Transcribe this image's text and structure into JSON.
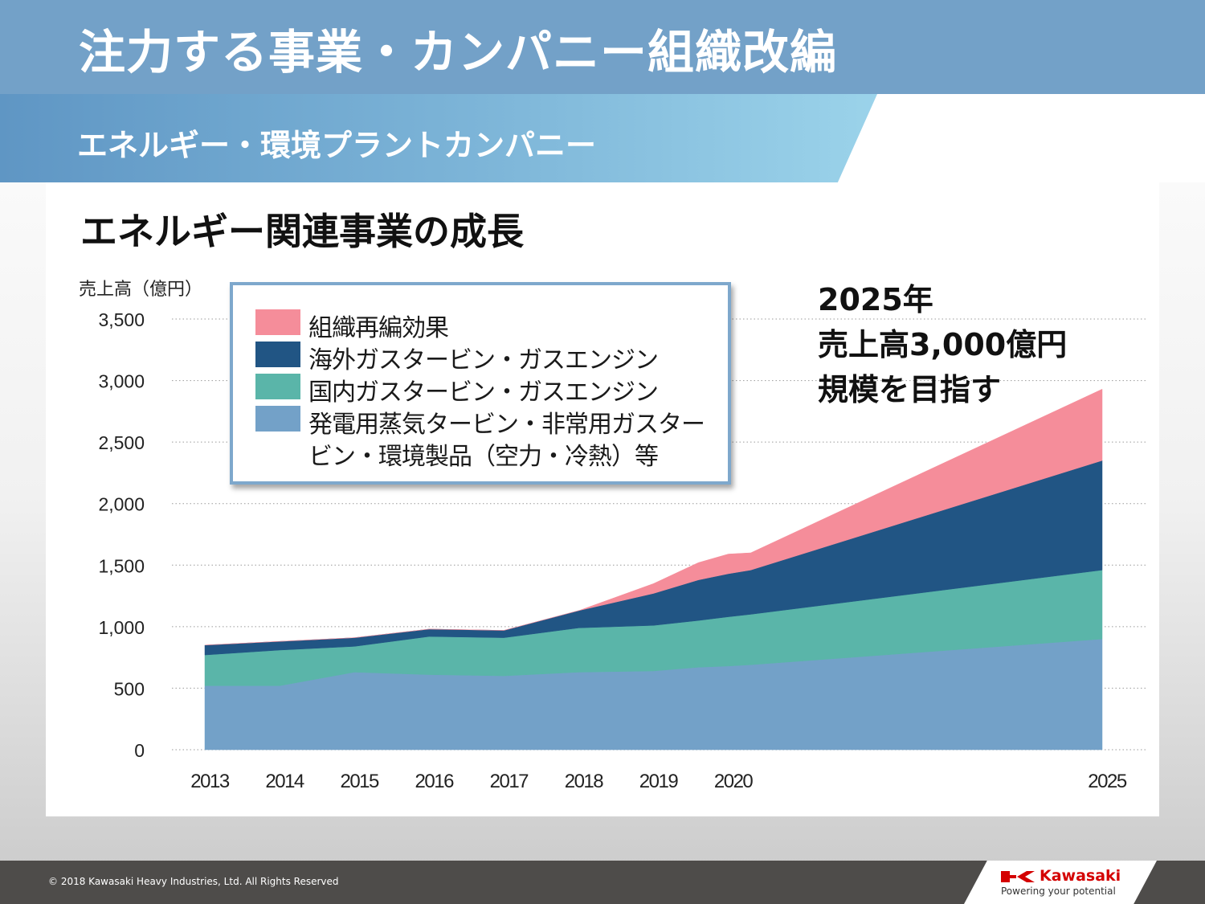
{
  "header": {
    "title": "注力する事業・カンパニー組織改編",
    "subtitle": "エネルギー・環境プラントカンパニー"
  },
  "chart_heading": "エネルギー関連事業の成長",
  "annotation": {
    "lines": [
      "2025年",
      "売上高3,000億円",
      "規模を目指す"
    ]
  },
  "legend": {
    "items": [
      {
        "label": "組織再編効果",
        "color": "#f58d9a"
      },
      {
        "label": "海外ガスタービン・ガスエンジン",
        "color": "#215584"
      },
      {
        "label": "国内ガスタービン・ガスエンジン",
        "color": "#5ab5a9"
      },
      {
        "label_line1": "発電用蒸気タービン・非常用ガスター",
        "label_line2": "ビン・環境製品（空力・冷熱）等",
        "color": "#73a1c8"
      }
    ]
  },
  "chart_data": {
    "type": "area",
    "stacked": true,
    "ylabel": "売上高（億円）",
    "ylim": [
      0,
      3500
    ],
    "yticks": [
      0,
      500,
      1000,
      1500,
      2000,
      2500,
      3000,
      3500
    ],
    "ytick_labels": [
      "0",
      "500",
      "1,000",
      "1,500",
      "2,000",
      "2,500",
      "3,000",
      "3,500"
    ],
    "x_positions": [
      2013,
      2014,
      2015,
      2016,
      2017,
      2018,
      2019,
      2019.6,
      2020,
      2020.3,
      2025
    ],
    "xtick_labels": [
      "2013",
      "2014",
      "2015",
      "2016",
      "2017",
      "2018",
      "2019",
      "2020",
      "2025"
    ],
    "xtick_values": [
      2013,
      2014,
      2015,
      2016,
      2017,
      2018,
      2019,
      2020,
      2025
    ],
    "grid": "dotted-horizontal",
    "series": [
      {
        "name": "発電用蒸気タービン・非常用ガスタービン・環境製品（空力・冷熱）等",
        "color": "#73a1c8",
        "values": [
          520,
          520,
          630,
          610,
          600,
          630,
          640,
          670,
          680,
          690,
          900
        ]
      },
      {
        "name": "国内ガスタービン・ガスエンジン",
        "color": "#5ab5a9",
        "values": [
          250,
          290,
          210,
          310,
          310,
          360,
          370,
          380,
          400,
          410,
          560
        ]
      },
      {
        "name": "海外ガスタービン・ガスエンジン",
        "color": "#215584",
        "values": [
          80,
          70,
          70,
          60,
          60,
          140,
          260,
          330,
          350,
          360,
          890
        ]
      },
      {
        "name": "組織再編効果",
        "color": "#f58d9a",
        "values": [
          0,
          0,
          0,
          0,
          0,
          0,
          80,
          140,
          160,
          140,
          580
        ]
      }
    ]
  },
  "footer": {
    "copyright": "© 2018 Kawasaki Heavy Industries, Ltd. All Rights Reserved",
    "logo_name": "Kawasaki",
    "logo_tagline": "Powering your potential",
    "logo_color": "#d40000"
  }
}
